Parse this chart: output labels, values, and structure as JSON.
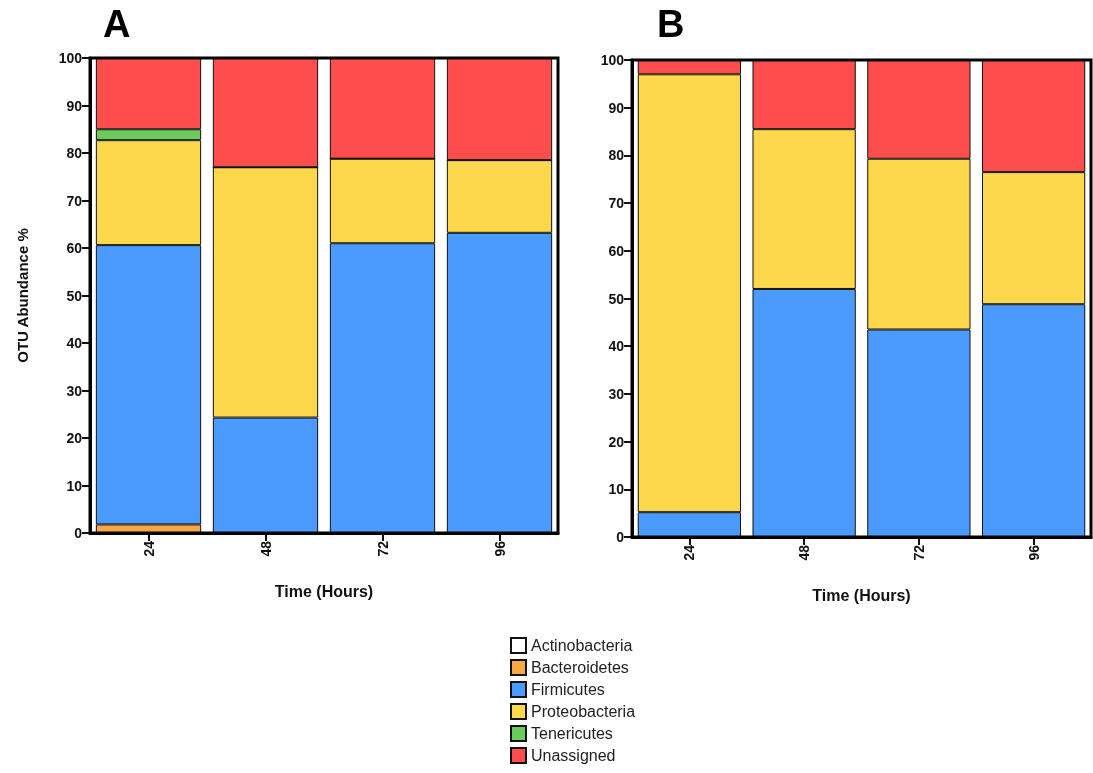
{
  "chart_data": [
    {
      "type": "bar",
      "title": "A",
      "xlabel": "Time (Hours)",
      "ylabel": "OTU Abundance %",
      "categories": [
        "24",
        "48",
        "72",
        "96"
      ],
      "stacked": true,
      "ylim": [
        0,
        100
      ],
      "yticks": [
        0,
        10,
        20,
        30,
        40,
        50,
        60,
        70,
        80,
        90,
        100
      ],
      "grid": false,
      "legend": "bottom",
      "series": [
        {
          "name": "Actinobacteria",
          "color": "#ffffff",
          "values": [
            0,
            0,
            0,
            0
          ]
        },
        {
          "name": "Bacteroidetes",
          "color": "#f9a744",
          "values": [
            1.8,
            0,
            0,
            0
          ]
        },
        {
          "name": "Firmicutes",
          "color": "#4b9bff",
          "values": [
            58.8,
            24.3,
            61,
            63.2
          ]
        },
        {
          "name": "Proteobacteria",
          "color": "#fcd84a",
          "values": [
            22.1,
            52.7,
            17.8,
            15.3
          ]
        },
        {
          "name": "Tenericutes",
          "color": "#6acb5a",
          "values": [
            2.3,
            0,
            0,
            0
          ]
        },
        {
          "name": "Unassigned",
          "color": "#fd4d4d",
          "values": [
            15,
            23,
            21.2,
            21.5
          ]
        }
      ]
    },
    {
      "type": "bar",
      "title": "B",
      "xlabel": "Time (Hours)",
      "categories": [
        "24",
        "48",
        "72",
        "96"
      ],
      "stacked": true,
      "ylim": [
        0,
        100
      ],
      "yticks": [
        0,
        10,
        20,
        30,
        40,
        50,
        60,
        70,
        80,
        90,
        100
      ],
      "grid": false,
      "legend": "bottom",
      "series": [
        {
          "name": "Firmicutes",
          "color": "#4b9bff",
          "values": [
            5.2,
            52,
            43.5,
            48.8
          ]
        },
        {
          "name": "Proteobacteria",
          "color": "#fcd84a",
          "values": [
            91.8,
            33.5,
            35.8,
            27.7
          ]
        },
        {
          "name": "Unassigned",
          "color": "#fd4d4d",
          "values": [
            3,
            14.5,
            20.7,
            23.5
          ]
        }
      ]
    }
  ]
}
